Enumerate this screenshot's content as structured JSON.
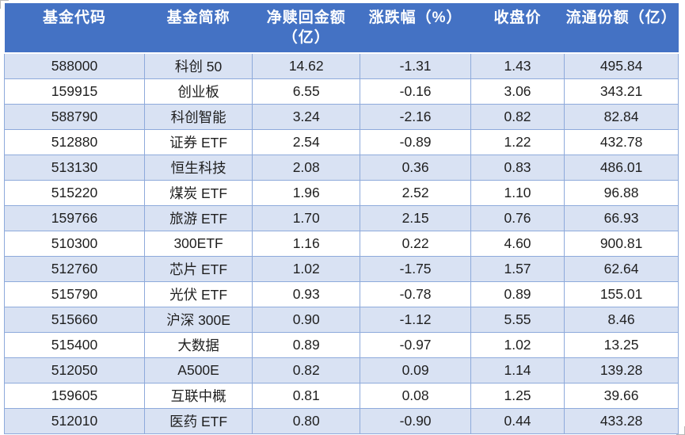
{
  "colors": {
    "page_bg": "#FFFFFF",
    "header_bg": "#4472C4",
    "header_text": "#FFFFFF",
    "stripe_bg": "#D9E2F3",
    "border": "#8EAADB",
    "body_text": "#1F1F1F"
  },
  "table": {
    "columns": [
      {
        "key": "fund_code",
        "label_lines": [
          "基金代码"
        ],
        "width_pct": 20.8
      },
      {
        "key": "fund_name",
        "label_lines": [
          "基金简称"
        ],
        "width_pct": 16.0
      },
      {
        "key": "net_redemption",
        "label_lines": [
          "净赎回金额",
          "（亿）"
        ],
        "width_pct": 16.0
      },
      {
        "key": "change_pct",
        "label_lines": [
          "涨跌幅（%）"
        ],
        "width_pct": 16.4
      },
      {
        "key": "close_price",
        "label_lines": [
          "收盘价"
        ],
        "width_pct": 13.9
      },
      {
        "key": "float_shares",
        "label_lines": [
          "流通份额（亿）"
        ],
        "width_pct": 16.9
      }
    ],
    "rows": [
      [
        "588000",
        "科创 50",
        "14.62",
        "-1.31",
        "1.43",
        "495.84"
      ],
      [
        "159915",
        "创业板",
        "6.55",
        "-0.16",
        "3.06",
        "343.21"
      ],
      [
        "588790",
        "科创智能",
        "3.24",
        "-2.16",
        "0.82",
        "82.84"
      ],
      [
        "512880",
        "证券 ETF",
        "2.54",
        "-0.89",
        "1.22",
        "432.78"
      ],
      [
        "513130",
        "恒生科技",
        "2.08",
        "0.36",
        "0.83",
        "486.01"
      ],
      [
        "515220",
        "煤炭 ETF",
        "1.96",
        "2.52",
        "1.10",
        "96.88"
      ],
      [
        "159766",
        "旅游 ETF",
        "1.70",
        "2.15",
        "0.76",
        "66.93"
      ],
      [
        "510300",
        "300ETF",
        "1.16",
        "0.22",
        "4.60",
        "900.81"
      ],
      [
        "512760",
        "芯片 ETF",
        "1.02",
        "-1.75",
        "1.57",
        "62.64"
      ],
      [
        "515790",
        "光伏 ETF",
        "0.93",
        "-0.78",
        "0.89",
        "155.01"
      ],
      [
        "515660",
        "沪深 300E",
        "0.90",
        "-1.12",
        "5.55",
        "8.46"
      ],
      [
        "515400",
        "大数据",
        "0.89",
        "-0.97",
        "1.02",
        "13.25"
      ],
      [
        "512050",
        "A500E",
        "0.82",
        "0.09",
        "1.14",
        "139.28"
      ],
      [
        "159605",
        "互联中概",
        "0.81",
        "0.08",
        "1.25",
        "39.66"
      ],
      [
        "512010",
        "医药 ETF",
        "0.80",
        "-0.90",
        "0.44",
        "433.28"
      ]
    ]
  }
}
